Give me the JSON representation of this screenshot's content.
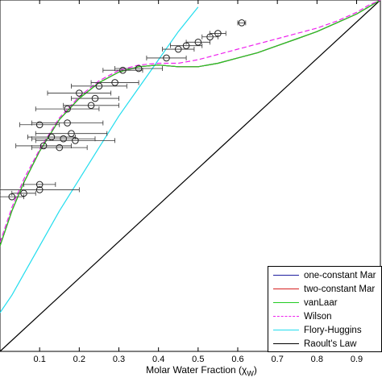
{
  "chart_data": {
    "type": "line",
    "xlabel_text": "Molar Water Fraction (",
    "xlabel_symbol": "χ",
    "xlabel_sub": "W",
    "xlabel_close": ")",
    "xlim": [
      0.0,
      0.96
    ],
    "ylim": [
      0.0,
      1.0
    ],
    "x_ticks": [
      0.1,
      0.2,
      0.3,
      0.4,
      0.5,
      0.6,
      0.7,
      0.8,
      0.9
    ],
    "x_tick_labels": [
      "0.1",
      "0.2",
      "0.3",
      "0.4",
      "0.5",
      "0.6",
      "0.7",
      "0.8",
      "0.9"
    ],
    "legend": [
      {
        "label": "one-constant Mar",
        "color": "#1f1f9f",
        "dash": "solid"
      },
      {
        "label": "two-constant Mar",
        "color": "#d62020",
        "dash": "solid"
      },
      {
        "label": "vanLaar",
        "color": "#22cc22",
        "dash": "solid"
      },
      {
        "label": "Wilson",
        "color": "#ee22ee",
        "dash": "dashed"
      },
      {
        "label": "Flory-Huggins",
        "color": "#22ddee",
        "dash": "solid"
      },
      {
        "label": "Raoult's Law",
        "color": "#000000",
        "dash": "solid"
      }
    ],
    "series": [
      {
        "name": "Raoult's Law",
        "color": "#000000",
        "dash": "solid",
        "x": [
          0.0,
          0.96
        ],
        "y": [
          0.0,
          1.0
        ]
      },
      {
        "name": "Flory-Huggins",
        "color": "#22ddee",
        "dash": "solid",
        "x": [
          0.0,
          0.03,
          0.06,
          0.1,
          0.15,
          0.2,
          0.25,
          0.3,
          0.35,
          0.4,
          0.45,
          0.5
        ],
        "y": [
          0.11,
          0.16,
          0.22,
          0.3,
          0.4,
          0.49,
          0.58,
          0.67,
          0.75,
          0.83,
          0.91,
          0.98
        ]
      },
      {
        "name": "one-constant Mar",
        "color": "#1f1f9f",
        "dash": "solid",
        "x": [
          0.0,
          0.03,
          0.06,
          0.1,
          0.15,
          0.2,
          0.25,
          0.3,
          0.35,
          0.4,
          0.45,
          0.5,
          0.55,
          0.6,
          0.65,
          0.7,
          0.75,
          0.8,
          0.85,
          0.9,
          0.93,
          0.96
        ],
        "y": [
          0.3,
          0.4,
          0.48,
          0.57,
          0.66,
          0.72,
          0.765,
          0.795,
          0.81,
          0.815,
          0.81,
          0.81,
          0.82,
          0.835,
          0.85,
          0.87,
          0.89,
          0.91,
          0.935,
          0.96,
          0.98,
          1.0
        ]
      },
      {
        "name": "two-constant Mar",
        "color": "#d62020",
        "dash": "solid",
        "x": [
          0.0,
          0.03,
          0.06,
          0.1,
          0.15,
          0.2,
          0.25,
          0.3,
          0.35,
          0.4,
          0.45,
          0.5,
          0.55,
          0.6,
          0.65,
          0.7,
          0.75,
          0.8,
          0.85,
          0.9,
          0.93,
          0.96
        ],
        "y": [
          0.3,
          0.4,
          0.48,
          0.57,
          0.66,
          0.72,
          0.765,
          0.795,
          0.81,
          0.815,
          0.81,
          0.81,
          0.82,
          0.835,
          0.85,
          0.87,
          0.89,
          0.91,
          0.935,
          0.96,
          0.98,
          1.0
        ]
      },
      {
        "name": "vanLaar",
        "color": "#22cc22",
        "dash": "solid",
        "x": [
          0.0,
          0.03,
          0.06,
          0.1,
          0.15,
          0.2,
          0.25,
          0.3,
          0.35,
          0.4,
          0.45,
          0.5,
          0.55,
          0.6,
          0.65,
          0.7,
          0.75,
          0.8,
          0.85,
          0.9,
          0.93,
          0.96
        ],
        "y": [
          0.3,
          0.4,
          0.48,
          0.57,
          0.66,
          0.72,
          0.765,
          0.795,
          0.81,
          0.815,
          0.81,
          0.81,
          0.82,
          0.835,
          0.85,
          0.87,
          0.89,
          0.91,
          0.935,
          0.96,
          0.98,
          1.0
        ]
      },
      {
        "name": "Wilson",
        "color": "#ee22ee",
        "dash": "dashed",
        "x": [
          0.0,
          0.03,
          0.06,
          0.1,
          0.15,
          0.2,
          0.25,
          0.3,
          0.35,
          0.4,
          0.45,
          0.5,
          0.55,
          0.6,
          0.65,
          0.7,
          0.75,
          0.8,
          0.85,
          0.9,
          0.93,
          0.96
        ],
        "y": [
          0.31,
          0.41,
          0.49,
          0.575,
          0.665,
          0.725,
          0.77,
          0.8,
          0.815,
          0.82,
          0.82,
          0.83,
          0.845,
          0.86,
          0.875,
          0.89,
          0.905,
          0.92,
          0.94,
          0.965,
          0.985,
          1.0
        ]
      }
    ],
    "experimental_points": {
      "marker": "circle",
      "points": [
        {
          "x": 0.03,
          "y": 0.44,
          "xerr": 0.03
        },
        {
          "x": 0.06,
          "y": 0.45,
          "xerr": 0.03
        },
        {
          "x": 0.1,
          "y": 0.46,
          "xerr": 0.1
        },
        {
          "x": 0.1,
          "y": 0.475,
          "xerr": 0.04
        },
        {
          "x": 0.1,
          "y": 0.645,
          "xerr": 0.05
        },
        {
          "x": 0.11,
          "y": 0.585,
          "xerr": 0.07
        },
        {
          "x": 0.13,
          "y": 0.61,
          "xerr": 0.06
        },
        {
          "x": 0.15,
          "y": 0.58,
          "xerr": 0.07
        },
        {
          "x": 0.16,
          "y": 0.605,
          "xerr": 0.08
        },
        {
          "x": 0.17,
          "y": 0.65,
          "xerr": 0.09
        },
        {
          "x": 0.17,
          "y": 0.69,
          "xerr": 0.08
        },
        {
          "x": 0.18,
          "y": 0.62,
          "xerr": 0.09
        },
        {
          "x": 0.19,
          "y": 0.6,
          "xerr": 0.1
        },
        {
          "x": 0.2,
          "y": 0.735,
          "xerr": 0.08
        },
        {
          "x": 0.23,
          "y": 0.7,
          "xerr": 0.07
        },
        {
          "x": 0.24,
          "y": 0.72,
          "xerr": 0.06
        },
        {
          "x": 0.25,
          "y": 0.755,
          "xerr": 0.07
        },
        {
          "x": 0.29,
          "y": 0.765,
          "xerr": 0.06
        },
        {
          "x": 0.31,
          "y": 0.8,
          "xerr": 0.05
        },
        {
          "x": 0.35,
          "y": 0.805,
          "xerr": 0.06
        },
        {
          "x": 0.42,
          "y": 0.835,
          "xerr": 0.05
        },
        {
          "x": 0.45,
          "y": 0.86,
          "xerr": 0.04
        },
        {
          "x": 0.47,
          "y": 0.87,
          "xerr": 0.04
        },
        {
          "x": 0.5,
          "y": 0.88,
          "xerr": 0.03
        },
        {
          "x": 0.53,
          "y": 0.895,
          "xerr": 0.02
        },
        {
          "x": 0.55,
          "y": 0.905,
          "xerr": 0.02
        },
        {
          "x": 0.61,
          "y": 0.935,
          "xerr": 0.01
        }
      ]
    },
    "axis_box": true,
    "grid": false,
    "legend_position": "bottom-right"
  }
}
